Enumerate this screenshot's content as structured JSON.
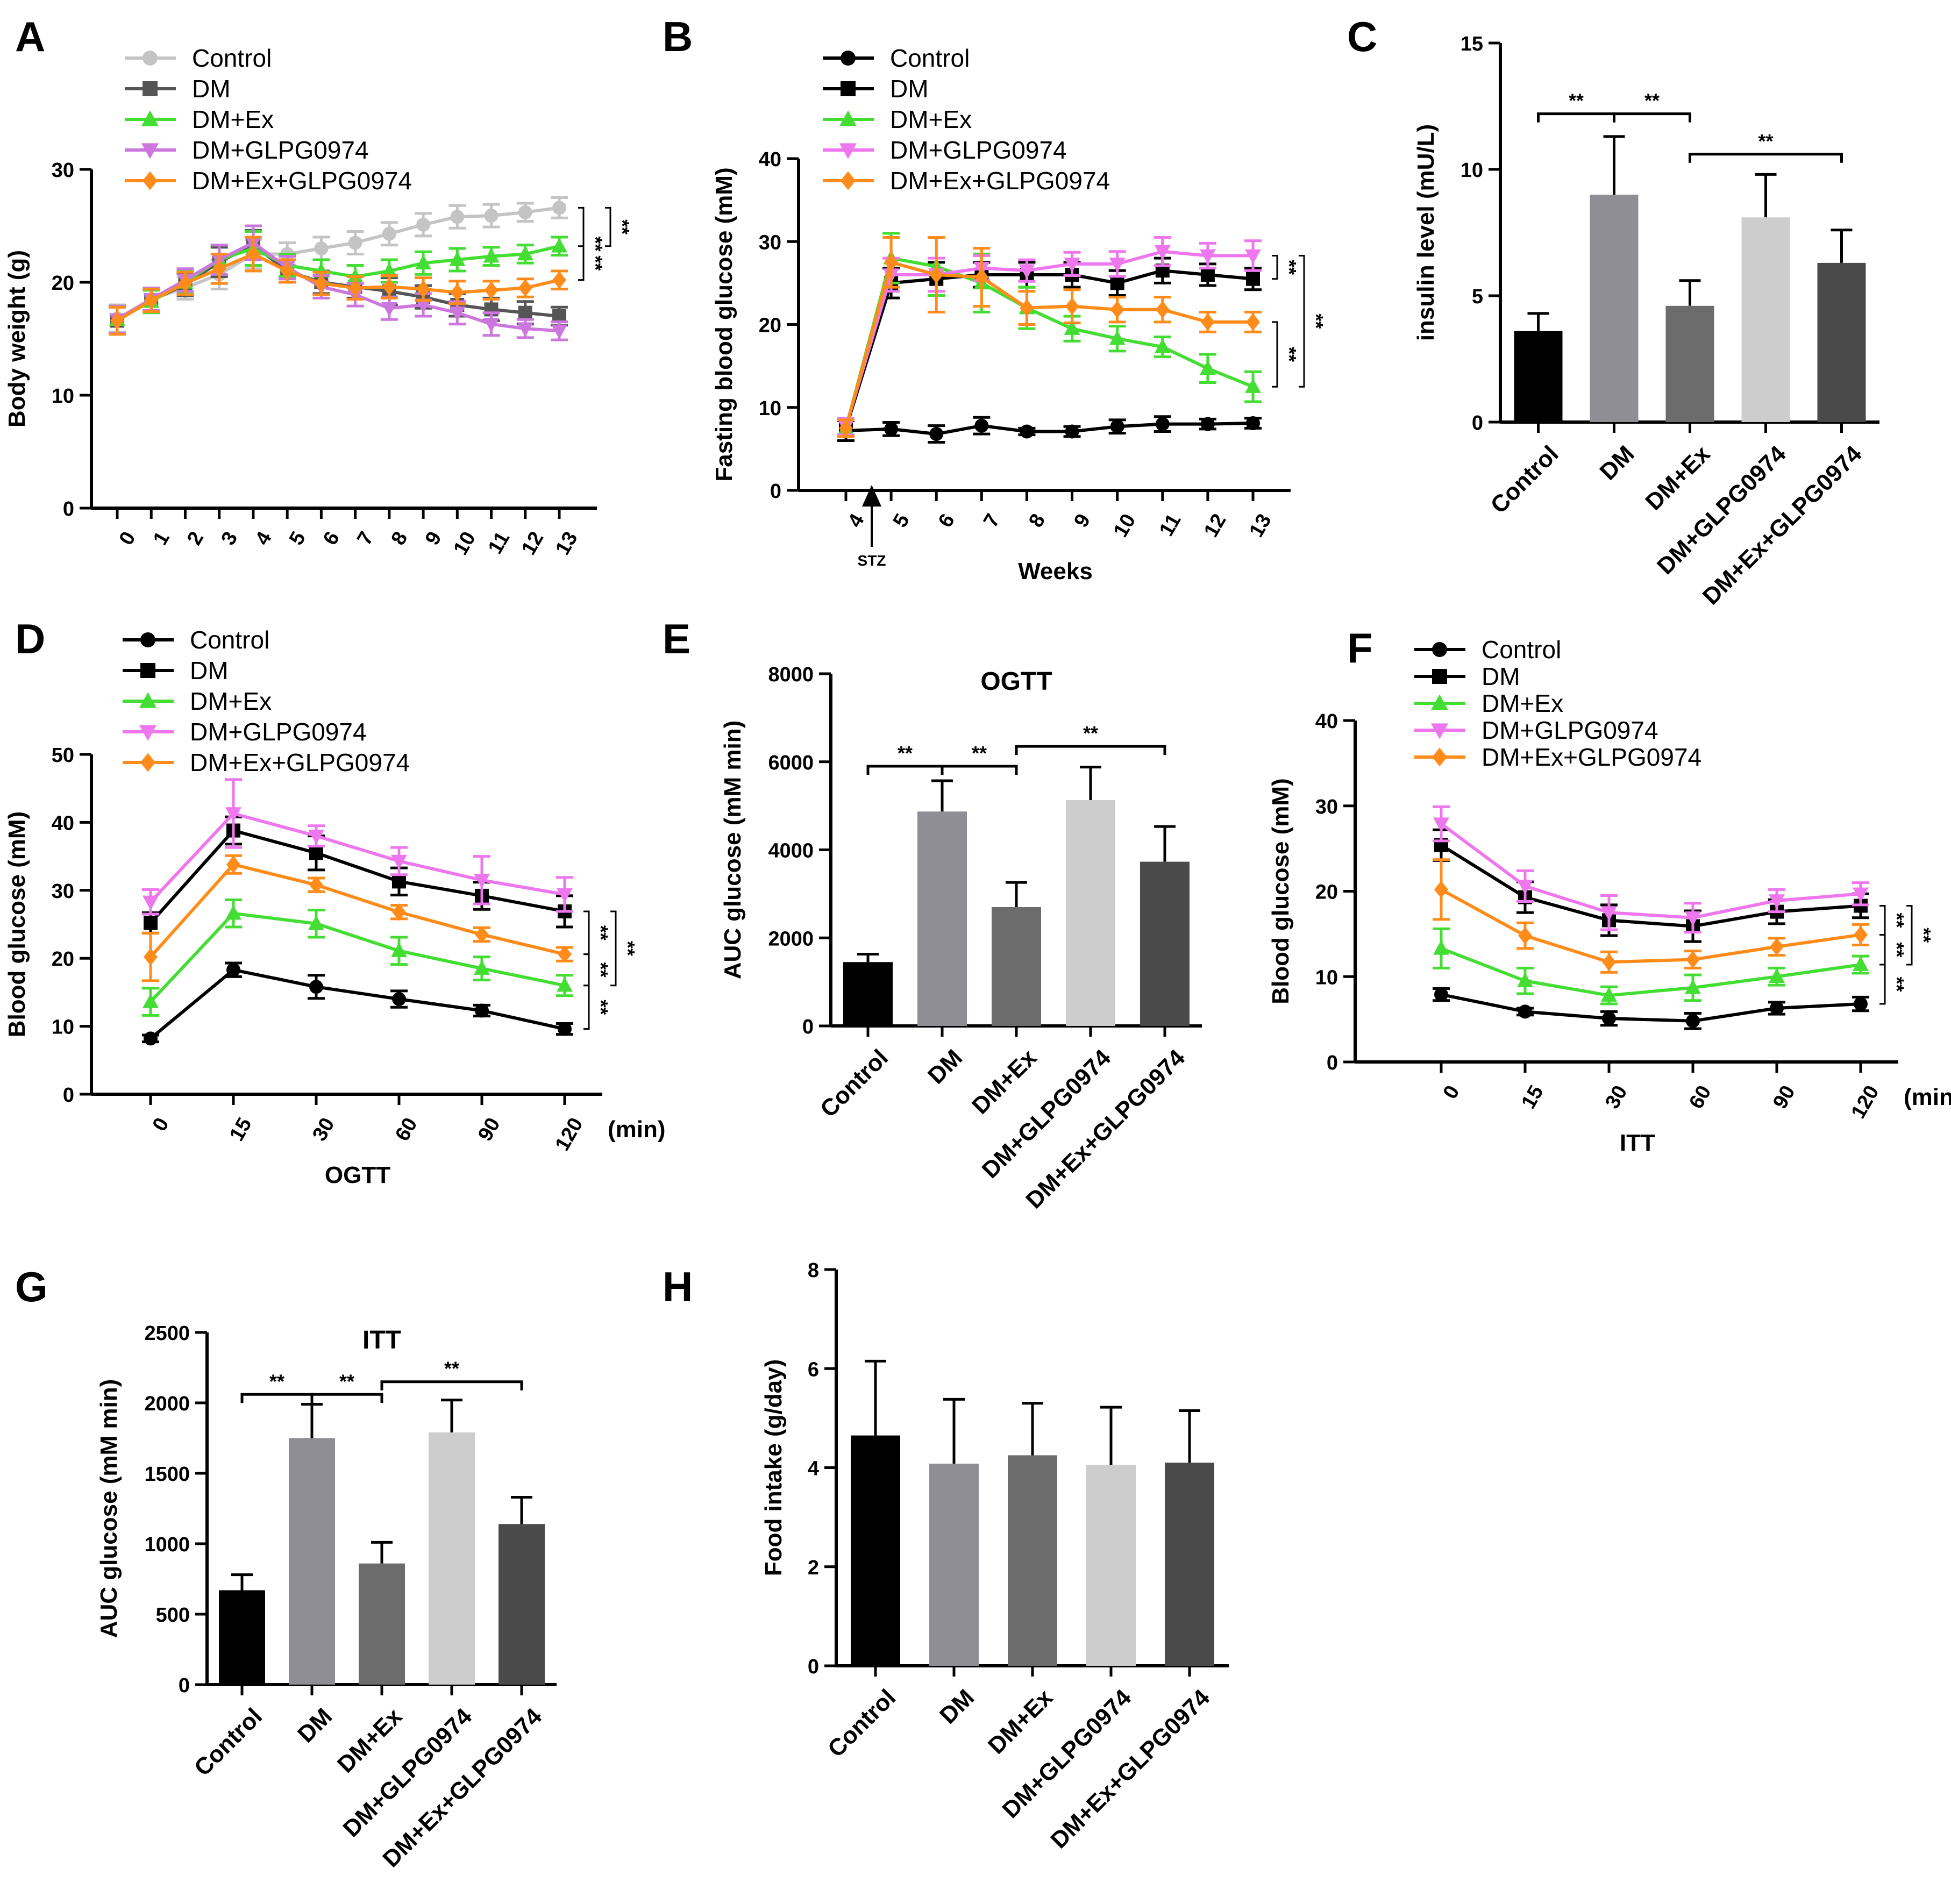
{
  "figure": {
    "group_colors": {
      "line_panelA": [
        "#c4c4c4",
        "#555555",
        "#44dd33",
        "#cc77dd",
        "#ff8c1a"
      ],
      "line_other": [
        "#000000",
        "#000000",
        "#44dd33",
        "#ee77ee",
        "#ff8c1a"
      ],
      "bars": [
        "#000000",
        "#8e8e94",
        "#6c6c6c",
        "#cdcdcd",
        "#4a4a4a"
      ]
    },
    "group_markers": [
      "circle",
      "square",
      "triangle-up",
      "triangle-down",
      "diamond"
    ]
  },
  "chart_data": [
    {
      "id": "A",
      "letter": "A",
      "type": "line",
      "title": "",
      "xlabel": "",
      "ylabel": "Body weight (g)",
      "ylim": [
        0,
        30
      ],
      "yticks": [
        0,
        10,
        20,
        30
      ],
      "x": [
        0,
        1,
        2,
        3,
        4,
        5,
        6,
        7,
        8,
        9,
        10,
        11,
        12,
        13
      ],
      "xtick_labels": [
        "0",
        "1",
        "2",
        "3",
        "4",
        "5",
        "6",
        "7",
        "8",
        "9",
        "10",
        "11",
        "12",
        "13"
      ],
      "color_set": "line_panelA",
      "series": [
        {
          "name": "Control",
          "values": [
            16.8,
            18.5,
            19.5,
            20.7,
            22.5,
            22.5,
            23.0,
            23.5,
            24.3,
            25.1,
            25.8,
            25.9,
            26.2,
            26.6
          ],
          "err": [
            1.2,
            1.0,
            1.0,
            1.3,
            1.3,
            1.0,
            1.0,
            1.0,
            1.0,
            1.0,
            1.0,
            1.0,
            0.8,
            0.9
          ]
        },
        {
          "name": "DM",
          "values": [
            16.6,
            18.4,
            19.8,
            21.8,
            23.3,
            21.0,
            20.0,
            19.6,
            19.2,
            18.7,
            18.0,
            17.6,
            17.3,
            17.0
          ],
          "err": [
            1.2,
            1.0,
            1.0,
            1.3,
            1.3,
            1.0,
            1.0,
            1.0,
            1.2,
            1.0,
            1.0,
            1.0,
            1.0,
            0.8
          ]
        },
        {
          "name": "DM+Ex",
          "values": [
            16.7,
            18.3,
            20.0,
            22.0,
            23.0,
            21.5,
            21.0,
            20.5,
            21.0,
            21.7,
            22.0,
            22.3,
            22.5,
            23.2
          ],
          "err": [
            1.2,
            1.0,
            1.0,
            1.3,
            1.5,
            1.0,
            1.0,
            1.0,
            1.0,
            1.0,
            1.0,
            0.8,
            0.8,
            0.8
          ]
        },
        {
          "name": "DM+GLPG0974",
          "values": [
            16.7,
            18.5,
            20.2,
            22.0,
            23.5,
            21.3,
            19.6,
            18.9,
            17.7,
            18.0,
            17.3,
            16.3,
            15.9,
            15.7
          ],
          "err": [
            1.2,
            1.0,
            1.0,
            1.3,
            1.5,
            1.0,
            1.0,
            1.0,
            1.0,
            1.0,
            1.0,
            1.0,
            0.8,
            0.8
          ]
        },
        {
          "name": "DM+Ex+GLPG0974",
          "values": [
            16.6,
            18.4,
            19.9,
            21.2,
            22.5,
            21.0,
            19.9,
            19.5,
            19.6,
            19.4,
            19.1,
            19.3,
            19.5,
            20.2
          ],
          "err": [
            1.2,
            1.0,
            1.0,
            1.3,
            1.5,
            1.0,
            1.0,
            1.0,
            1.0,
            1.0,
            1.0,
            0.8,
            0.8,
            0.8
          ]
        }
      ],
      "sig": [
        {
          "label": "**",
          "from": 0,
          "to": 4
        },
        {
          "label": "**",
          "from": 2,
          "to": 4
        },
        {
          "label": "**",
          "from": 0,
          "to": 2,
          "outer": true
        }
      ]
    },
    {
      "id": "B",
      "letter": "B",
      "type": "line",
      "title": "",
      "xlabel": "Weeks",
      "ylabel": "Fasting blood glucose (mM)",
      "ylim": [
        0,
        40
      ],
      "yticks": [
        0,
        10,
        20,
        30,
        40
      ],
      "x": [
        4,
        5,
        6,
        7,
        8,
        9,
        10,
        11,
        12,
        13
      ],
      "xtick_labels": [
        "4",
        "5",
        "6",
        "7",
        "8",
        "9",
        "10",
        "11",
        "12",
        "13"
      ],
      "annotation": "STZ",
      "color_set": "line_other",
      "series": [
        {
          "name": "Control",
          "values": [
            7.2,
            7.4,
            6.8,
            7.8,
            7.1,
            7.1,
            7.7,
            8.0,
            8.0,
            8.1
          ],
          "err": [
            1.2,
            0.8,
            1.0,
            1.0,
            0.4,
            0.6,
            0.8,
            0.9,
            0.6,
            0.6
          ]
        },
        {
          "name": "DM",
          "values": [
            7.5,
            25.0,
            25.5,
            26.0,
            26.0,
            26.0,
            25.0,
            26.5,
            26.0,
            25.5
          ],
          "err": [
            1.0,
            1.8,
            2.0,
            1.5,
            1.5,
            1.5,
            1.5,
            1.5,
            1.3,
            1.3
          ]
        },
        {
          "name": "DM+Ex",
          "values": [
            7.5,
            28.0,
            27.0,
            25.0,
            22.0,
            19.5,
            18.3,
            17.3,
            14.7,
            12.5
          ],
          "err": [
            1.0,
            3.0,
            3.5,
            3.5,
            2.5,
            1.5,
            1.5,
            1.2,
            1.7,
            1.8
          ]
        },
        {
          "name": "DM+GLPG0974",
          "values": [
            7.7,
            26.0,
            26.0,
            26.8,
            26.5,
            27.3,
            27.3,
            28.8,
            28.3,
            28.3
          ],
          "err": [
            1.0,
            2.0,
            2.0,
            1.5,
            1.3,
            1.4,
            1.5,
            1.7,
            1.5,
            1.8
          ]
        },
        {
          "name": "DM+Ex+GLPG0974",
          "values": [
            7.5,
            27.5,
            26.0,
            25.7,
            22.0,
            22.2,
            21.8,
            21.8,
            20.3,
            20.3
          ],
          "err": [
            1.0,
            3.0,
            4.5,
            3.5,
            2.0,
            2.0,
            1.5,
            1.5,
            1.2,
            1.2
          ]
        }
      ],
      "sig": [
        {
          "label": "**",
          "from": 3,
          "to": 1
        },
        {
          "label": "**",
          "from": 2,
          "to": 4
        },
        {
          "label": "**",
          "from": 3,
          "to": 2,
          "outer": true
        }
      ]
    },
    {
      "id": "C",
      "letter": "C",
      "type": "bar",
      "title": "",
      "xlabel": "",
      "ylabel": "insulin level (mU/L)",
      "ylim": [
        0,
        15
      ],
      "yticks": [
        0,
        5,
        10,
        15
      ],
      "categories": [
        "Control",
        "DM",
        "DM+Ex",
        "DM+GLPG0974",
        "DM+Ex+GLPG0974"
      ],
      "values": [
        3.6,
        9.0,
        4.6,
        8.1,
        6.3
      ],
      "err": [
        0.7,
        2.3,
        1.0,
        1.7,
        1.3
      ],
      "sig": [
        {
          "label": "**",
          "from": 0,
          "to": 1,
          "y": 12.2
        },
        {
          "label": "**",
          "from": 1,
          "to": 2,
          "y": 12.2
        },
        {
          "label": "**",
          "from": 2,
          "to": 4,
          "y": 10.6
        }
      ]
    },
    {
      "id": "D",
      "letter": "D",
      "type": "line",
      "title": "",
      "xlabel": "OGTT",
      "ylabel": "Blood glucose (mM)",
      "ylim": [
        0,
        50
      ],
      "yticks": [
        0,
        10,
        20,
        30,
        40,
        50
      ],
      "x": [
        0,
        15,
        30,
        60,
        90,
        120
      ],
      "xtick_labels": [
        "0",
        "15",
        "30",
        "60",
        "90",
        "120"
      ],
      "xunit": "(min)",
      "color_set": "line_other",
      "series": [
        {
          "name": "Control",
          "values": [
            8.2,
            18.3,
            15.8,
            14.0,
            12.3,
            9.6
          ],
          "err": [
            0.5,
            1.0,
            1.7,
            1.2,
            0.8,
            0.8
          ]
        },
        {
          "name": "DM",
          "values": [
            25.2,
            38.8,
            35.5,
            31.3,
            29.2,
            26.9
          ],
          "err": [
            1.5,
            2.0,
            2.5,
            2.0,
            2.0,
            2.3
          ]
        },
        {
          "name": "DM+Ex",
          "values": [
            13.6,
            26.6,
            25.1,
            21.1,
            18.5,
            16.0
          ],
          "err": [
            2.0,
            2.0,
            2.0,
            2.0,
            1.7,
            1.5
          ]
        },
        {
          "name": "DM+GLPG0974",
          "values": [
            28.3,
            41.3,
            38.0,
            34.3,
            31.5,
            29.4
          ],
          "err": [
            1.8,
            5.0,
            1.5,
            2.0,
            3.5,
            2.5
          ]
        },
        {
          "name": "DM+Ex+GLPG0974",
          "values": [
            20.2,
            33.8,
            30.8,
            26.8,
            23.5,
            20.6
          ],
          "err": [
            3.5,
            1.3,
            1.0,
            1.0,
            1.0,
            1.0
          ]
        }
      ],
      "sig": [
        {
          "label": "**",
          "from": 1,
          "to": 4
        },
        {
          "label": "**",
          "from": 4,
          "to": 2
        },
        {
          "label": "**",
          "from": 2,
          "to": 0
        },
        {
          "label": "**",
          "from": 1,
          "to": 2,
          "outer": true
        }
      ]
    },
    {
      "id": "E",
      "letter": "E",
      "type": "bar",
      "title": "OGTT",
      "xlabel": "",
      "ylabel": "AUC glucose (mM min)",
      "ylim": [
        0,
        8000
      ],
      "yticks": [
        0,
        2000,
        4000,
        6000,
        8000
      ],
      "categories": [
        "Control",
        "DM",
        "DM+Ex",
        "DM+GLPG0974",
        "DM+Ex+GLPG0974"
      ],
      "values": [
        1450,
        4870,
        2700,
        5130,
        3730
      ],
      "err": [
        180,
        700,
        560,
        750,
        800
      ],
      "sig": [
        {
          "label": "**",
          "from": 0,
          "to": 1,
          "y": 5900
        },
        {
          "label": "**",
          "from": 1,
          "to": 2,
          "y": 5900
        },
        {
          "label": "**",
          "from": 2,
          "to": 4,
          "y": 6350
        }
      ]
    },
    {
      "id": "F",
      "letter": "F",
      "type": "line",
      "title": "",
      "xlabel": "ITT",
      "ylabel": "Blood glucose (mM)",
      "ylim": [
        0,
        40
      ],
      "yticks": [
        0,
        10,
        20,
        30,
        40
      ],
      "x": [
        0,
        15,
        30,
        60,
        90,
        120
      ],
      "xtick_labels": [
        "0",
        "15",
        "30",
        "60",
        "90",
        "120"
      ],
      "xunit": "(min)",
      "color_set": "line_other",
      "series": [
        {
          "name": "Control",
          "values": [
            7.9,
            5.9,
            5.1,
            4.8,
            6.3,
            6.8
          ],
          "err": [
            0.7,
            0.4,
            0.8,
            0.9,
            0.7,
            0.8
          ]
        },
        {
          "name": "DM",
          "values": [
            25.4,
            19.3,
            16.6,
            15.9,
            17.6,
            18.3
          ],
          "err": [
            1.8,
            1.8,
            1.8,
            1.8,
            1.4,
            1.4
          ]
        },
        {
          "name": "DM+Ex",
          "values": [
            13.3,
            9.5,
            7.8,
            8.7,
            10.0,
            11.4
          ],
          "err": [
            2.3,
            1.5,
            1.0,
            1.5,
            1.0,
            1.0
          ]
        },
        {
          "name": "DM+GLPG0974",
          "values": [
            27.9,
            20.6,
            17.5,
            16.9,
            18.9,
            19.7
          ],
          "err": [
            2.0,
            1.8,
            2.0,
            1.7,
            1.3,
            1.3
          ]
        },
        {
          "name": "DM+Ex+GLPG0974",
          "values": [
            20.2,
            14.8,
            11.7,
            12.0,
            13.5,
            14.9
          ],
          "err": [
            3.5,
            1.5,
            1.2,
            1.0,
            1.0,
            1.2
          ]
        }
      ],
      "sig": [
        {
          "label": "**",
          "from": 1,
          "to": 4
        },
        {
          "label": "**",
          "from": 4,
          "to": 2
        },
        {
          "label": "**",
          "from": 2,
          "to": 0
        },
        {
          "label": "**",
          "from": 1,
          "to": 2,
          "outer": true
        }
      ]
    },
    {
      "id": "G",
      "letter": "G",
      "type": "bar",
      "title": "ITT",
      "xlabel": "",
      "ylabel": "AUC glucose (mM min)",
      "ylim": [
        0,
        2500
      ],
      "yticks": [
        0,
        500,
        1000,
        1500,
        2000,
        2500
      ],
      "categories": [
        "Control",
        "DM",
        "DM+Ex",
        "DM+GLPG0974",
        "DM+Ex+GLPG0974"
      ],
      "values": [
        670,
        1750,
        860,
        1790,
        1140
      ],
      "err": [
        110,
        240,
        150,
        230,
        190
      ],
      "sig": [
        {
          "label": "**",
          "from": 0,
          "to": 1,
          "y": 2060
        },
        {
          "label": "**",
          "from": 1,
          "to": 2,
          "y": 2060
        },
        {
          "label": "**",
          "from": 2,
          "to": 4,
          "y": 2150
        }
      ]
    },
    {
      "id": "H",
      "letter": "H",
      "type": "bar",
      "title": "",
      "xlabel": "",
      "ylabel": "Food intake (g/day)",
      "ylim": [
        0,
        8
      ],
      "yticks": [
        0,
        2,
        4,
        6,
        8
      ],
      "categories": [
        "Control",
        "DM",
        "DM+Ex",
        "DM+GLPG0974",
        "DM+Ex+GLPG0974"
      ],
      "values": [
        4.65,
        4.08,
        4.25,
        4.05,
        4.1
      ],
      "err": [
        1.5,
        1.3,
        1.05,
        1.17,
        1.05
      ],
      "sig": []
    }
  ]
}
